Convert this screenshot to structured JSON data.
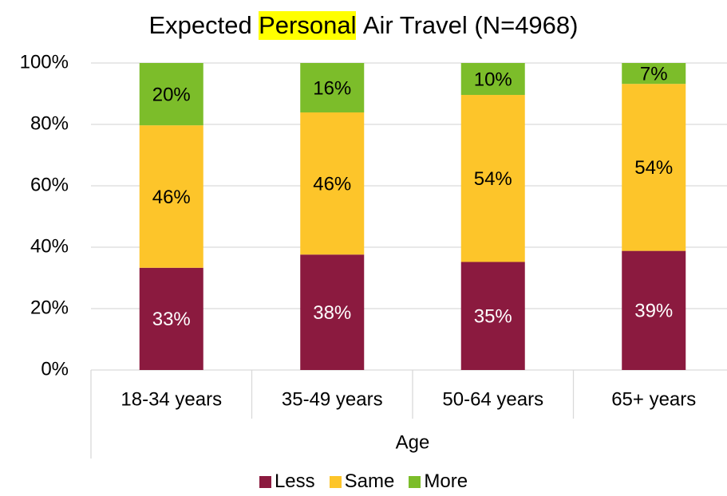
{
  "chart_data": {
    "type": "stacked_bar",
    "title_parts": [
      {
        "text": "Expected"
      },
      {
        "text": "Personal",
        "highlight": "#ffff00"
      },
      {
        "text": "Air Travel (N=4968)"
      }
    ],
    "x_label": "Age",
    "categories": [
      "18-34 years",
      "35-49 years",
      "50-64 years",
      "65+ years"
    ],
    "series": [
      {
        "name": "Less",
        "color": "#8b1a3f",
        "label_color": "#ffffff",
        "values": [
          33.3,
          37.6,
          35.2,
          38.8
        ],
        "value_labels": [
          "33%",
          "38%",
          "35%",
          "39%"
        ]
      },
      {
        "name": "Same",
        "color": "#fdc52a",
        "label_color": "#000000",
        "values": [
          46.4,
          46.3,
          54.4,
          54.4
        ],
        "value_labels": [
          "46%",
          "46%",
          "54%",
          "54%"
        ]
      },
      {
        "name": "More",
        "color": "#7cbd2a",
        "label_color": "#000000",
        "values": [
          20.3,
          16.1,
          10.4,
          6.8
        ],
        "value_labels": [
          "20%",
          "16%",
          "10%",
          "7%"
        ]
      }
    ],
    "ylim": [
      0,
      100
    ],
    "yticks": [
      {
        "value": 0,
        "label": "0%"
      },
      {
        "value": 20,
        "label": "20%"
      },
      {
        "value": 40,
        "label": "40%"
      },
      {
        "value": 60,
        "label": "60%"
      },
      {
        "value": 80,
        "label": "80%"
      },
      {
        "value": 100,
        "label": "100%"
      }
    ],
    "grid": true,
    "legend": "bottom"
  }
}
